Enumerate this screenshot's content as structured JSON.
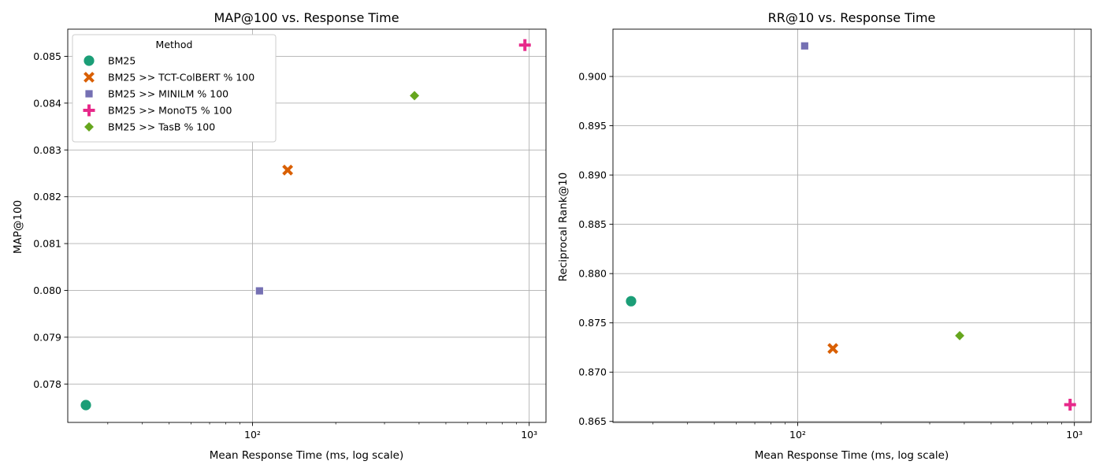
{
  "chart_data": [
    {
      "type": "scatter",
      "title": "MAP@100 vs. Response Time",
      "xlabel": "Mean Response Time (ms, log scale)",
      "ylabel": "MAP@100",
      "xscale": "log",
      "xlim": [
        21.5,
        1150
      ],
      "ylim": [
        0.07718,
        0.08558
      ],
      "x_ticks": [
        {
          "value": 100,
          "label": "10²"
        },
        {
          "value": 1000,
          "label": "10³"
        }
      ],
      "y_ticks": [
        0.078,
        0.079,
        0.08,
        0.081,
        0.082,
        0.083,
        0.084,
        0.085
      ],
      "grid": true,
      "legend": {
        "title": "Method",
        "placement": "upper-left"
      },
      "series": [
        {
          "name": "BM25",
          "marker": "circle",
          "color": "#1b9e77",
          "x": 25,
          "y": 0.07755
        },
        {
          "name": "BM25 >> TCT-ColBERT % 100",
          "marker": "x",
          "color": "#d95f02",
          "x": 134,
          "y": 0.08257
        },
        {
          "name": "BM25 >> MINILM % 100",
          "marker": "square",
          "color": "#7570b3",
          "x": 106,
          "y": 0.07999
        },
        {
          "name": "BM25 >> MonoT5 % 100",
          "marker": "plus",
          "color": "#e7298a",
          "x": 965,
          "y": 0.08524
        },
        {
          "name": "BM25 >> TasB % 100",
          "marker": "diamond",
          "color": "#66a61e",
          "x": 385,
          "y": 0.08416
        }
      ]
    },
    {
      "type": "scatter",
      "title": "RR@10 vs. Response Time",
      "xlabel": "Mean Response Time (ms, log scale)",
      "ylabel": "Reciprocal Rank@10",
      "xscale": "log",
      "xlim": [
        21.5,
        1150
      ],
      "ylim": [
        0.8649,
        0.9048
      ],
      "x_ticks": [
        {
          "value": 100,
          "label": "10²"
        },
        {
          "value": 1000,
          "label": "10³"
        }
      ],
      "y_ticks": [
        0.865,
        0.87,
        0.875,
        0.88,
        0.885,
        0.89,
        0.895,
        0.9
      ],
      "grid": true,
      "series": [
        {
          "name": "BM25",
          "marker": "circle",
          "color": "#1b9e77",
          "x": 25,
          "y": 0.8772
        },
        {
          "name": "BM25 >> TCT-ColBERT % 100",
          "marker": "x",
          "color": "#d95f02",
          "x": 134,
          "y": 0.8724
        },
        {
          "name": "BM25 >> MINILM % 100",
          "marker": "square",
          "color": "#7570b3",
          "x": 106,
          "y": 0.9031
        },
        {
          "name": "BM25 >> MonoT5 % 100",
          "marker": "plus",
          "color": "#e7298a",
          "x": 965,
          "y": 0.8667
        },
        {
          "name": "BM25 >> TasB % 100",
          "marker": "diamond",
          "color": "#66a61e",
          "x": 385,
          "y": 0.8737
        }
      ]
    }
  ]
}
